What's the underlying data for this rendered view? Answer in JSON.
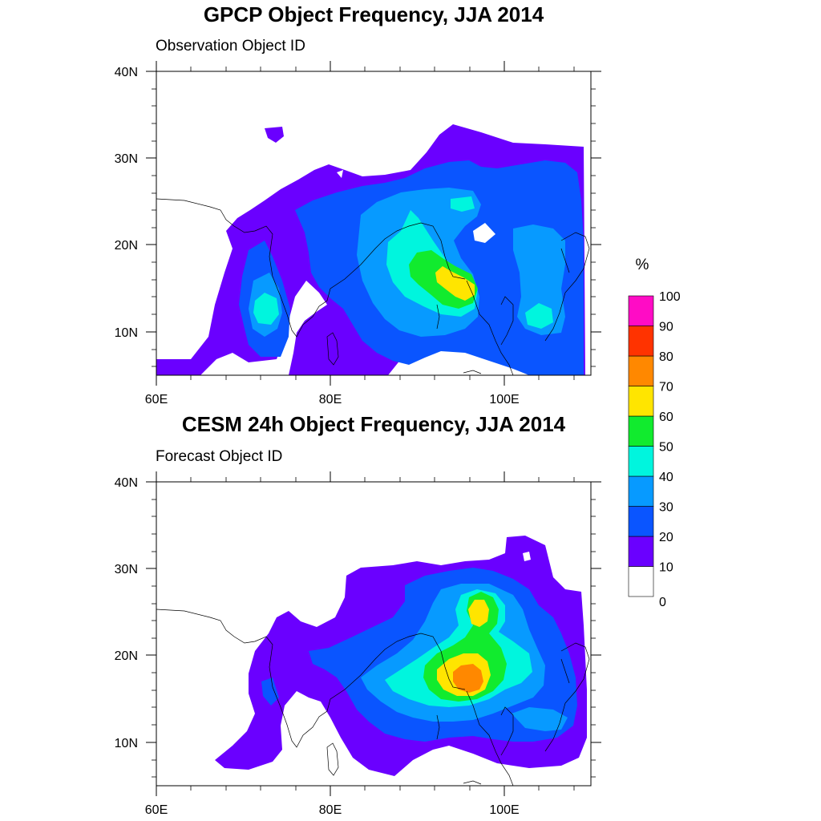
{
  "panels": [
    {
      "title": "GPCP Object Frequency, JJA 2014",
      "subtitle": "Observation Object ID",
      "lat_ticks": [
        "10N",
        "20N",
        "30N",
        "40N"
      ],
      "lon_ticks": [
        "60E",
        "80E",
        "100E"
      ],
      "extent": {
        "lon": [
          60,
          110
        ],
        "lat": [
          5,
          40
        ]
      },
      "description": "Object frequency over South and Southeast Asia; maximum 60-70% near 95E,16N"
    },
    {
      "title": "CESM 24h Object Frequency, JJA 2014",
      "subtitle": "Forecast Object ID",
      "lat_ticks": [
        "10N",
        "20N",
        "30N",
        "40N"
      ],
      "lon_ticks": [
        "60E",
        "80E",
        "100E"
      ],
      "extent": {
        "lon": [
          60,
          110
        ],
        "lat": [
          5,
          40
        ]
      },
      "description": "Forecast object frequency; maxima 70-80% near 96E,17N and 60-70% near 97E,25N"
    }
  ],
  "colorbar": {
    "unit": "%",
    "labels": [
      "0",
      "10",
      "20",
      "30",
      "40",
      "50",
      "60",
      "70",
      "80",
      "90",
      "100"
    ],
    "colors": [
      "#ffffff",
      "#6a00ff",
      "#0a55ff",
      "#079aff",
      "#00f5de",
      "#11eb2e",
      "#ffe500",
      "#ff8800",
      "#ff3300",
      "#ff0cc5"
    ]
  },
  "colors": {
    "c10": "#6a00ff",
    "c20": "#0a55ff",
    "c30": "#079aff",
    "c40": "#00f5de",
    "c50": "#11eb2e",
    "c60": "#ffe500",
    "c70": "#ff8800"
  }
}
